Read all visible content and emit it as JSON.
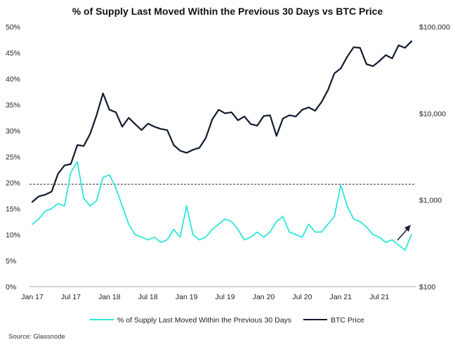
{
  "chart_data": {
    "type": "line",
    "title": "% of Supply Last Moved Within the Previous 30 Days vs BTC Price",
    "source": "Source: Glassnode",
    "x_tick_labels": [
      "Jan 17",
      "Jul 17",
      "Jan 18",
      "Jul 18",
      "Jan 19",
      "Jul 19",
      "Jan 20",
      "Jul 20",
      "Jan 21",
      "Jul 21"
    ],
    "x_range": [
      "2017-01",
      "2021-12"
    ],
    "y_left": {
      "ticks": [
        "0%",
        "5%",
        "10%",
        "15%",
        "20%",
        "25%",
        "30%",
        "35%",
        "40%",
        "45%",
        "50%"
      ],
      "range": [
        0,
        50
      ]
    },
    "y_right": {
      "scale": "log",
      "ticks": [
        "$100",
        "$1,000",
        "$10,000",
        "$100,000"
      ],
      "range": [
        100,
        100000
      ]
    },
    "reference_line_pct": 19.7,
    "legend_placement": "bottom-center",
    "annotation": "arrow-up",
    "colors": {
      "supply": "#2ee6d6",
      "price": "#111a2e"
    },
    "series": [
      {
        "name": "% of Supply Last Moved Within the Previous 30 Days",
        "axis": "left",
        "x": [
          "2017-01",
          "2017-02",
          "2017-03",
          "2017-04",
          "2017-05",
          "2017-06",
          "2017-07",
          "2017-08",
          "2017-09",
          "2017-10",
          "2017-11",
          "2017-12",
          "2018-01",
          "2018-02",
          "2018-03",
          "2018-04",
          "2018-05",
          "2018-06",
          "2018-07",
          "2018-08",
          "2018-09",
          "2018-10",
          "2018-11",
          "2018-12",
          "2019-01",
          "2019-02",
          "2019-03",
          "2019-04",
          "2019-05",
          "2019-06",
          "2019-07",
          "2019-08",
          "2019-09",
          "2019-10",
          "2019-11",
          "2019-12",
          "2020-01",
          "2020-02",
          "2020-03",
          "2020-04",
          "2020-05",
          "2020-06",
          "2020-07",
          "2020-08",
          "2020-09",
          "2020-10",
          "2020-11",
          "2020-12",
          "2021-01",
          "2021-02",
          "2021-03",
          "2021-04",
          "2021-05",
          "2021-06",
          "2021-07",
          "2021-08",
          "2021-09",
          "2021-10",
          "2021-11",
          "2021-12"
        ],
        "values": [
          12.0,
          13.0,
          14.5,
          15.0,
          16.0,
          15.5,
          22.0,
          24.0,
          17.0,
          15.5,
          16.5,
          21.0,
          21.5,
          19.0,
          15.5,
          12.0,
          10.0,
          9.5,
          9.0,
          9.5,
          8.5,
          9.0,
          11.0,
          9.5,
          15.5,
          10.0,
          9.0,
          9.5,
          11.0,
          12.0,
          13.0,
          12.5,
          11.0,
          9.0,
          9.5,
          10.5,
          9.5,
          10.5,
          12.5,
          13.5,
          10.5,
          10.0,
          9.5,
          12.0,
          10.5,
          10.5,
          12.0,
          13.5,
          19.5,
          15.5,
          13.0,
          12.5,
          11.5,
          10.0,
          9.5,
          8.5,
          9.0,
          8.0,
          7.0,
          10.0
        ]
      },
      {
        "name": "BTC Price",
        "axis": "right",
        "x": [
          "2017-01",
          "2017-02",
          "2017-03",
          "2017-04",
          "2017-05",
          "2017-06",
          "2017-07",
          "2017-08",
          "2017-09",
          "2017-10",
          "2017-11",
          "2017-12",
          "2018-01",
          "2018-02",
          "2018-03",
          "2018-04",
          "2018-05",
          "2018-06",
          "2018-07",
          "2018-08",
          "2018-09",
          "2018-10",
          "2018-11",
          "2018-12",
          "2019-01",
          "2019-02",
          "2019-03",
          "2019-04",
          "2019-05",
          "2019-06",
          "2019-07",
          "2019-08",
          "2019-09",
          "2019-10",
          "2019-11",
          "2019-12",
          "2020-01",
          "2020-02",
          "2020-03",
          "2020-04",
          "2020-05",
          "2020-06",
          "2020-07",
          "2020-08",
          "2020-09",
          "2020-10",
          "2020-11",
          "2020-12",
          "2021-01",
          "2021-02",
          "2021-03",
          "2021-04",
          "2021-05",
          "2021-06",
          "2021-07",
          "2021-08",
          "2021-09",
          "2021-10",
          "2021-11",
          "2021-12"
        ],
        "values": [
          950,
          1100,
          1150,
          1250,
          2000,
          2500,
          2600,
          4300,
          4200,
          5800,
          9500,
          17000,
          11000,
          10300,
          7000,
          8900,
          7500,
          6400,
          7600,
          7000,
          6600,
          6400,
          4300,
          3700,
          3500,
          3800,
          4000,
          5200,
          8500,
          11000,
          10000,
          10300,
          8300,
          9200,
          7500,
          7200,
          9300,
          9500,
          5500,
          8700,
          9500,
          9200,
          11000,
          11700,
          10700,
          13500,
          18500,
          28900,
          33000,
          45000,
          58000,
          57000,
          37000,
          35000,
          40000,
          47000,
          43000,
          61000,
          57000,
          68000
        ]
      }
    ]
  }
}
